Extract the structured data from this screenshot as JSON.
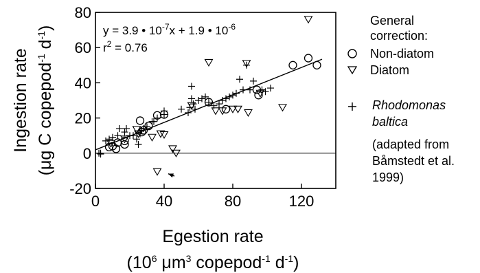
{
  "chart_data": {
    "type": "scatter",
    "xlabel": "Egestion rate",
    "xlabel_units": {
      "base": "(10",
      "exp1": "6",
      "mid": " μm",
      "exp2": "3",
      "mid2": " copepod",
      "exp3": "-1",
      "end": " d",
      "exp4": "-1",
      "close": ")"
    },
    "ylabel": "Ingestion rate",
    "ylabel_units": {
      "base": "(μg C copepod",
      "exp1": "-1",
      "mid": " d",
      "exp2": "-1",
      "close": ")"
    },
    "xlim": [
      0,
      140
    ],
    "ylim": [
      -20,
      80
    ],
    "x_ticks": [
      0,
      40,
      80,
      120
    ],
    "y_ticks": [
      -20,
      0,
      20,
      40,
      60,
      80
    ],
    "equation": {
      "line1": {
        "a": "y = 3.9 • 10",
        "e1": "-7",
        "b": "x + 1.9 • 10",
        "e2": "-6"
      },
      "line2": {
        "a": "r",
        "e1": "2",
        "b": " = 0.76"
      }
    },
    "regression": {
      "x": [
        0,
        132
      ],
      "y": [
        1.9,
        53.4
      ]
    },
    "legend": {
      "title_lines": [
        "General",
        "correction:"
      ],
      "non_diatom": "Non-diatom",
      "diatom": "Diatom",
      "rhodomonas_lines": [
        "Rhodomonas",
        "baltica"
      ],
      "source_lines": [
        "(adapted from",
        "Båmstedt et al.",
        "1999)"
      ]
    },
    "series": [
      {
        "name": "Non-diatom",
        "marker": "circle",
        "points": [
          [
            8,
            3.5
          ],
          [
            10,
            4
          ],
          [
            12,
            2.5
          ],
          [
            13,
            6
          ],
          [
            17,
            7
          ],
          [
            17,
            5
          ],
          [
            26,
            18.5
          ],
          [
            27,
            12
          ],
          [
            28,
            13
          ],
          [
            31,
            15.5
          ],
          [
            36,
            21.5
          ],
          [
            40,
            22
          ],
          [
            66,
            29
          ],
          [
            76,
            25
          ],
          [
            94,
            36
          ],
          [
            95,
            33
          ],
          [
            115,
            50
          ],
          [
            124,
            54
          ],
          [
            129,
            50
          ]
        ]
      },
      {
        "name": "Diatom",
        "marker": "triangle-down",
        "points": [
          [
            9,
            5.5
          ],
          [
            17,
            8
          ],
          [
            24,
            13.5
          ],
          [
            25,
            11
          ],
          [
            33,
            9
          ],
          [
            38,
            11
          ],
          [
            40,
            10.5
          ],
          [
            45,
            2.5
          ],
          [
            47,
            0
          ],
          [
            56,
            27
          ],
          [
            66,
            51.5
          ],
          [
            70,
            24
          ],
          [
            74,
            24
          ],
          [
            80,
            25
          ],
          [
            83,
            25
          ],
          [
            88,
            51
          ],
          [
            89,
            23
          ],
          [
            96,
            34
          ],
          [
            109,
            26
          ],
          [
            124,
            76
          ],
          [
            36,
            -10.5
          ]
        ]
      },
      {
        "name": "Rhodomonas baltica",
        "marker": "plus",
        "points": [
          [
            2,
            0
          ],
          [
            3,
            0
          ],
          [
            3,
            -0.5
          ],
          [
            6,
            7
          ],
          [
            8,
            8
          ],
          [
            10,
            9
          ],
          [
            13,
            10
          ],
          [
            14,
            14
          ],
          [
            17,
            12
          ],
          [
            18,
            14
          ],
          [
            20,
            10
          ],
          [
            22,
            10
          ],
          [
            24,
            8
          ],
          [
            25,
            5
          ],
          [
            26,
            11
          ],
          [
            27,
            13
          ],
          [
            28,
            14
          ],
          [
            30,
            15
          ],
          [
            33,
            18
          ],
          [
            34,
            18
          ],
          [
            36,
            20
          ],
          [
            40,
            24
          ],
          [
            40,
            22
          ],
          [
            50,
            25
          ],
          [
            54,
            23
          ],
          [
            55,
            26
          ],
          [
            56,
            38
          ],
          [
            56,
            31
          ],
          [
            57,
            28
          ],
          [
            58,
            25
          ],
          [
            60,
            30
          ],
          [
            62,
            31
          ],
          [
            64,
            32
          ],
          [
            66,
            29
          ],
          [
            69,
            27
          ],
          [
            72,
            28
          ],
          [
            74,
            30
          ],
          [
            76,
            31
          ],
          [
            78,
            32
          ],
          [
            80,
            33
          ],
          [
            82,
            34
          ],
          [
            84,
            42
          ],
          [
            86,
            36
          ],
          [
            88,
            50
          ],
          [
            90,
            36
          ],
          [
            92,
            41
          ],
          [
            97,
            36
          ],
          [
            99,
            35
          ],
          [
            102,
            37
          ]
        ]
      }
    ],
    "annotation_arrow": {
      "from": [
        46,
        -13
      ],
      "to": [
        40,
        -10.5
      ]
    }
  }
}
